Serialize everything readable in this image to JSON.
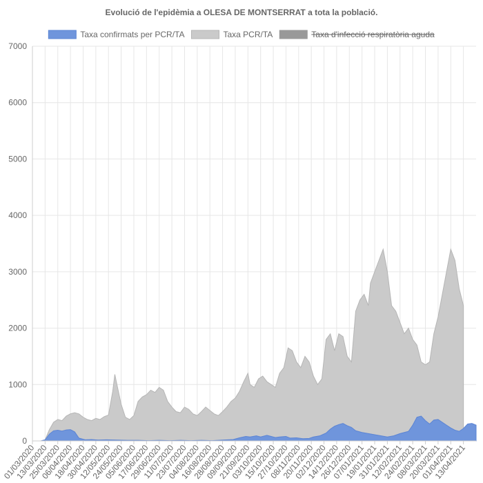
{
  "chart_data": {
    "type": "area",
    "title": "Evolució de l'epidèmia a OLESA DE MONTSERRAT a tota la població.",
    "ylim": [
      0,
      7000
    ],
    "yticks": [
      0,
      1000,
      2000,
      3000,
      4000,
      5000,
      6000,
      7000
    ],
    "grid": true,
    "legend_position": "top",
    "x_tick_labels": [
      "01/03/2020",
      "13/03/2020",
      "25/03/2020",
      "06/04/2020",
      "18/04/2020",
      "30/04/2020",
      "12/05/2020",
      "24/05/2020",
      "05/06/2020",
      "17/06/2020",
      "29/06/2020",
      "11/07/2020",
      "23/07/2020",
      "04/08/2020",
      "16/08/2020",
      "28/08/2020",
      "09/09/2020",
      "21/09/2020",
      "03/10/2020",
      "15/10/2020",
      "27/10/2020",
      "08/11/2020",
      "20/11/2020",
      "02/12/2020",
      "14/12/2020",
      "26/12/2020",
      "07/01/2021",
      "19/01/2021",
      "31/01/2021",
      "12/02/2021",
      "24/02/2021",
      "08/03/2021",
      "20/03/2021",
      "01/04/2021",
      "13/04/2021"
    ],
    "x_day_start": 0,
    "x_day_end": 420,
    "series": [
      {
        "name": "Taxa confirmats per PCR/TA",
        "color": "#5b84d4",
        "fill": "#6f95dc",
        "hidden": false,
        "points": [
          [
            0,
            0
          ],
          [
            8,
            0
          ],
          [
            12,
            20
          ],
          [
            16,
            120
          ],
          [
            20,
            180
          ],
          [
            24,
            190
          ],
          [
            28,
            175
          ],
          [
            32,
            195
          ],
          [
            36,
            200
          ],
          [
            40,
            160
          ],
          [
            44,
            50
          ],
          [
            50,
            20
          ],
          [
            56,
            25
          ],
          [
            62,
            15
          ],
          [
            70,
            20
          ],
          [
            80,
            15
          ],
          [
            90,
            10
          ],
          [
            100,
            10
          ],
          [
            110,
            5
          ],
          [
            120,
            10
          ],
          [
            130,
            5
          ],
          [
            140,
            10
          ],
          [
            150,
            5
          ],
          [
            160,
            10
          ],
          [
            170,
            5
          ],
          [
            180,
            15
          ],
          [
            190,
            25
          ],
          [
            196,
            55
          ],
          [
            202,
            80
          ],
          [
            206,
            70
          ],
          [
            212,
            90
          ],
          [
            216,
            70
          ],
          [
            222,
            100
          ],
          [
            226,
            80
          ],
          [
            230,
            60
          ],
          [
            234,
            70
          ],
          [
            240,
            80
          ],
          [
            244,
            50
          ],
          [
            250,
            55
          ],
          [
            256,
            40
          ],
          [
            262,
            45
          ],
          [
            266,
            70
          ],
          [
            272,
            90
          ],
          [
            278,
            140
          ],
          [
            282,
            210
          ],
          [
            286,
            260
          ],
          [
            290,
            290
          ],
          [
            294,
            310
          ],
          [
            298,
            270
          ],
          [
            302,
            240
          ],
          [
            306,
            180
          ],
          [
            312,
            150
          ],
          [
            318,
            130
          ],
          [
            324,
            110
          ],
          [
            330,
            90
          ],
          [
            336,
            70
          ],
          [
            342,
            90
          ],
          [
            348,
            130
          ],
          [
            352,
            150
          ],
          [
            356,
            170
          ],
          [
            360,
            280
          ],
          [
            364,
            420
          ],
          [
            368,
            440
          ],
          [
            372,
            360
          ],
          [
            376,
            300
          ],
          [
            380,
            370
          ],
          [
            384,
            380
          ],
          [
            388,
            330
          ],
          [
            392,
            280
          ],
          [
            396,
            230
          ],
          [
            400,
            190
          ],
          [
            404,
            170
          ],
          [
            408,
            220
          ],
          [
            412,
            300
          ],
          [
            416,
            310
          ],
          [
            420,
            280
          ]
        ]
      },
      {
        "name": "Taxa PCR/TA",
        "color": "#b5b5b5",
        "fill": "#cacaca",
        "hidden": false,
        "points": [
          [
            0,
            0
          ],
          [
            8,
            0
          ],
          [
            12,
            20
          ],
          [
            16,
            200
          ],
          [
            20,
            330
          ],
          [
            24,
            380
          ],
          [
            28,
            360
          ],
          [
            32,
            440
          ],
          [
            36,
            480
          ],
          [
            40,
            500
          ],
          [
            44,
            480
          ],
          [
            48,
            420
          ],
          [
            52,
            380
          ],
          [
            56,
            360
          ],
          [
            60,
            400
          ],
          [
            64,
            380
          ],
          [
            68,
            430
          ],
          [
            72,
            460
          ],
          [
            76,
            880
          ],
          [
            78,
            1180
          ],
          [
            80,
            1000
          ],
          [
            84,
            650
          ],
          [
            88,
            420
          ],
          [
            92,
            380
          ],
          [
            96,
            450
          ],
          [
            100,
            700
          ],
          [
            104,
            780
          ],
          [
            108,
            820
          ],
          [
            112,
            900
          ],
          [
            116,
            860
          ],
          [
            120,
            950
          ],
          [
            124,
            900
          ],
          [
            128,
            700
          ],
          [
            132,
            600
          ],
          [
            136,
            520
          ],
          [
            140,
            500
          ],
          [
            144,
            600
          ],
          [
            148,
            560
          ],
          [
            152,
            480
          ],
          [
            156,
            450
          ],
          [
            160,
            520
          ],
          [
            164,
            600
          ],
          [
            168,
            540
          ],
          [
            172,
            480
          ],
          [
            176,
            450
          ],
          [
            180,
            520
          ],
          [
            184,
            600
          ],
          [
            188,
            700
          ],
          [
            192,
            760
          ],
          [
            196,
            880
          ],
          [
            200,
            1050
          ],
          [
            204,
            1200
          ],
          [
            206,
            1000
          ],
          [
            210,
            950
          ],
          [
            214,
            1100
          ],
          [
            218,
            1150
          ],
          [
            222,
            1050
          ],
          [
            226,
            1000
          ],
          [
            230,
            950
          ],
          [
            234,
            1200
          ],
          [
            238,
            1300
          ],
          [
            242,
            1650
          ],
          [
            246,
            1600
          ],
          [
            250,
            1400
          ],
          [
            254,
            1300
          ],
          [
            258,
            1500
          ],
          [
            262,
            1400
          ],
          [
            266,
            1150
          ],
          [
            270,
            1000
          ],
          [
            274,
            1100
          ],
          [
            278,
            1800
          ],
          [
            282,
            1900
          ],
          [
            286,
            1600
          ],
          [
            290,
            1900
          ],
          [
            294,
            1850
          ],
          [
            298,
            1500
          ],
          [
            302,
            1400
          ],
          [
            306,
            2300
          ],
          [
            310,
            2500
          ],
          [
            314,
            2600
          ],
          [
            318,
            2400
          ],
          [
            320,
            2800
          ],
          [
            324,
            3000
          ],
          [
            328,
            3200
          ],
          [
            332,
            3400
          ],
          [
            336,
            3000
          ],
          [
            340,
            2400
          ],
          [
            344,
            2300
          ],
          [
            348,
            2100
          ],
          [
            352,
            1900
          ],
          [
            356,
            2000
          ],
          [
            360,
            1800
          ],
          [
            364,
            1700
          ],
          [
            368,
            1400
          ],
          [
            372,
            1350
          ],
          [
            376,
            1400
          ],
          [
            380,
            1900
          ],
          [
            384,
            2200
          ],
          [
            388,
            2600
          ],
          [
            392,
            3000
          ],
          [
            396,
            3400
          ],
          [
            400,
            3200
          ],
          [
            404,
            2700
          ],
          [
            408,
            2400
          ]
        ]
      },
      {
        "name": "Taxa d'infecció respiratòria aguda",
        "color": "#999999",
        "fill": "#999999",
        "hidden": true,
        "points": []
      }
    ]
  }
}
